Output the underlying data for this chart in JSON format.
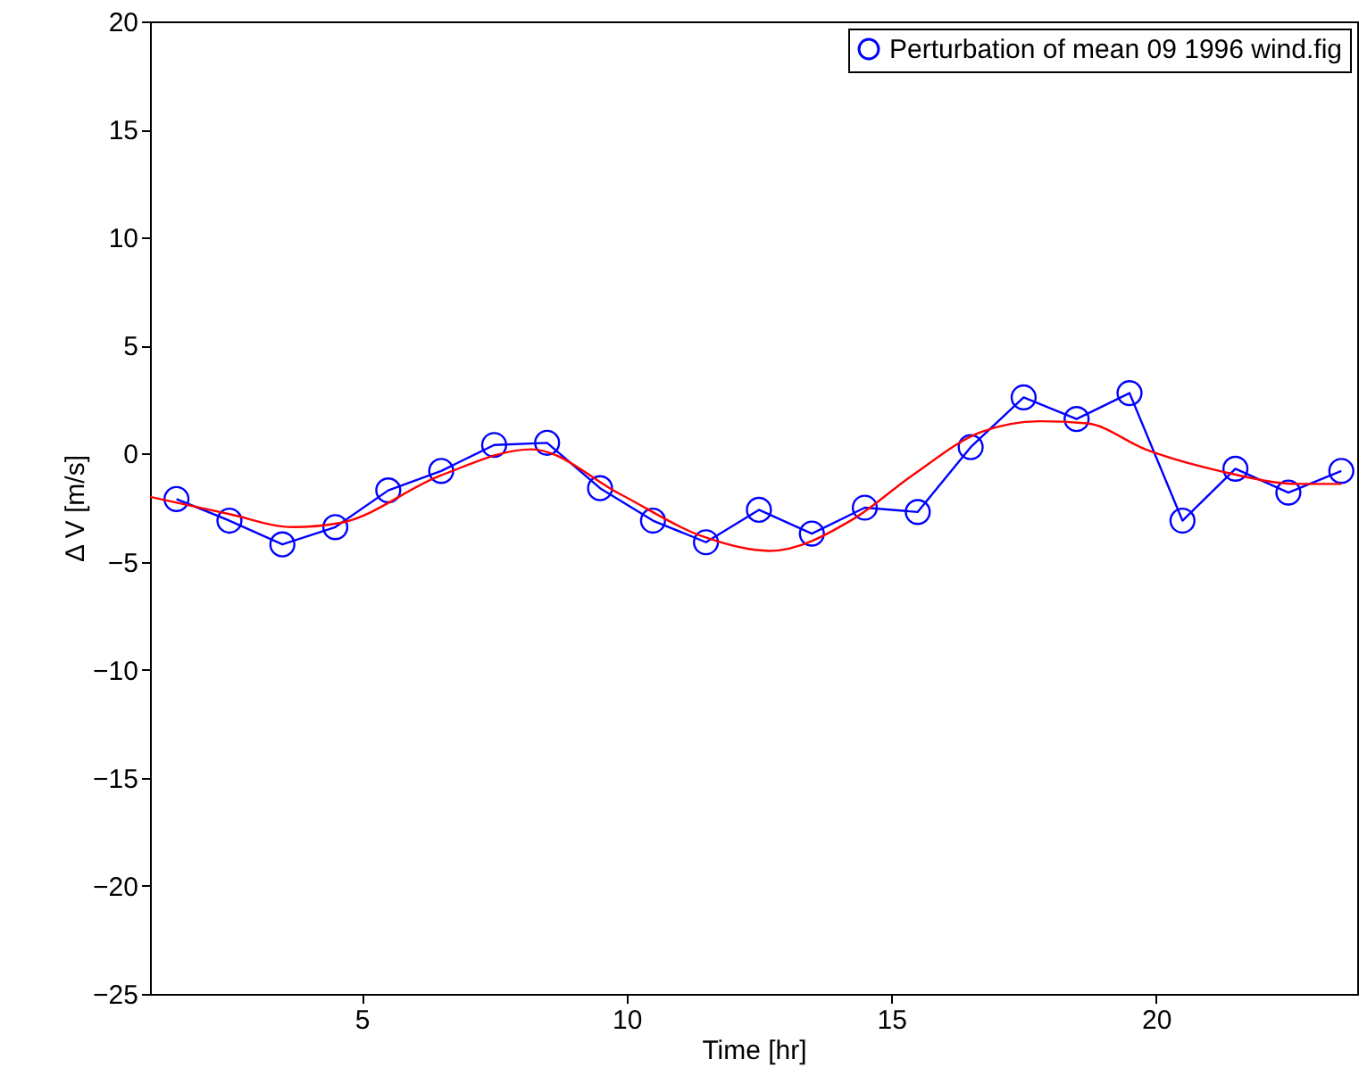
{
  "chart_data": {
    "type": "line",
    "xlabel": "Time [hr]",
    "ylabel": "Δ V [m/s]",
    "xlim": [
      1,
      23.8
    ],
    "ylim": [
      -25,
      20
    ],
    "xticks": [
      5,
      10,
      15,
      20
    ],
    "yticks": [
      -25,
      -20,
      -15,
      -10,
      -5,
      0,
      5,
      10,
      15,
      20
    ],
    "grid": false,
    "legend": "top right",
    "series": [
      {
        "name": "Perturbation of mean 09 1996 wind.fig",
        "color": "#0000ff",
        "marker": "circle",
        "x": [
          1.5,
          2.5,
          3.5,
          4.5,
          5.5,
          6.5,
          7.5,
          8.5,
          9.5,
          10.5,
          11.5,
          12.5,
          13.5,
          14.5,
          15.5,
          16.5,
          17.5,
          18.5,
          19.5,
          20.5,
          21.5,
          22.5,
          23.5
        ],
        "values": [
          -2.1,
          -3.1,
          -4.2,
          -3.4,
          -1.7,
          -0.8,
          0.4,
          0.5,
          -1.6,
          -3.1,
          -4.1,
          -2.6,
          -3.7,
          -2.5,
          -2.7,
          0.3,
          2.6,
          1.6,
          2.8,
          -3.1,
          -0.7,
          -1.8,
          -0.8
        ]
      },
      {
        "color": "#ff0000",
        "marker": "none",
        "x": [
          1,
          2.5,
          3.7,
          4.6,
          6.5,
          8.2,
          9.9,
          11.4,
          12.7,
          14.3,
          15.4,
          16.7,
          17.8,
          18.7,
          19.8,
          21.2,
          22.7,
          23.5
        ],
        "values": [
          -2.0,
          -2.8,
          -3.4,
          -3.2,
          -1.0,
          0.2,
          -1.9,
          -3.8,
          -4.5,
          -3.0,
          -1.0,
          1.0,
          1.5,
          1.4,
          0.2,
          -0.8,
          -1.4,
          -1.4
        ]
      }
    ]
  }
}
